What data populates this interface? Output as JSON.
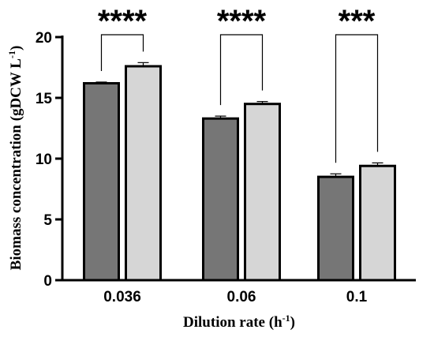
{
  "chart_data": {
    "type": "bar",
    "categories": [
      "0.036",
      "0.06",
      "0.1"
    ],
    "series": [
      {
        "values": [
          16.2,
          13.3,
          8.5
        ],
        "errors": [
          0.1,
          0.2,
          0.25
        ],
        "color": "#767676"
      },
      {
        "values": [
          17.6,
          14.5,
          9.4
        ],
        "errors": [
          0.3,
          0.2,
          0.25
        ],
        "color": "#d6d6d6"
      }
    ],
    "significance": [
      "****",
      "****",
      "***"
    ],
    "ylim": [
      0,
      20
    ],
    "yticks": [
      "0",
      "5",
      "10",
      "15",
      "20"
    ],
    "ylabel": {
      "main": "Biomass concentration (gDCW L",
      "sup": "-1",
      "end": ")"
    },
    "xlabel": {
      "main": "Dilution rate (h",
      "sup": "-1",
      "end": ")"
    },
    "grid": false,
    "legend": "none"
  }
}
